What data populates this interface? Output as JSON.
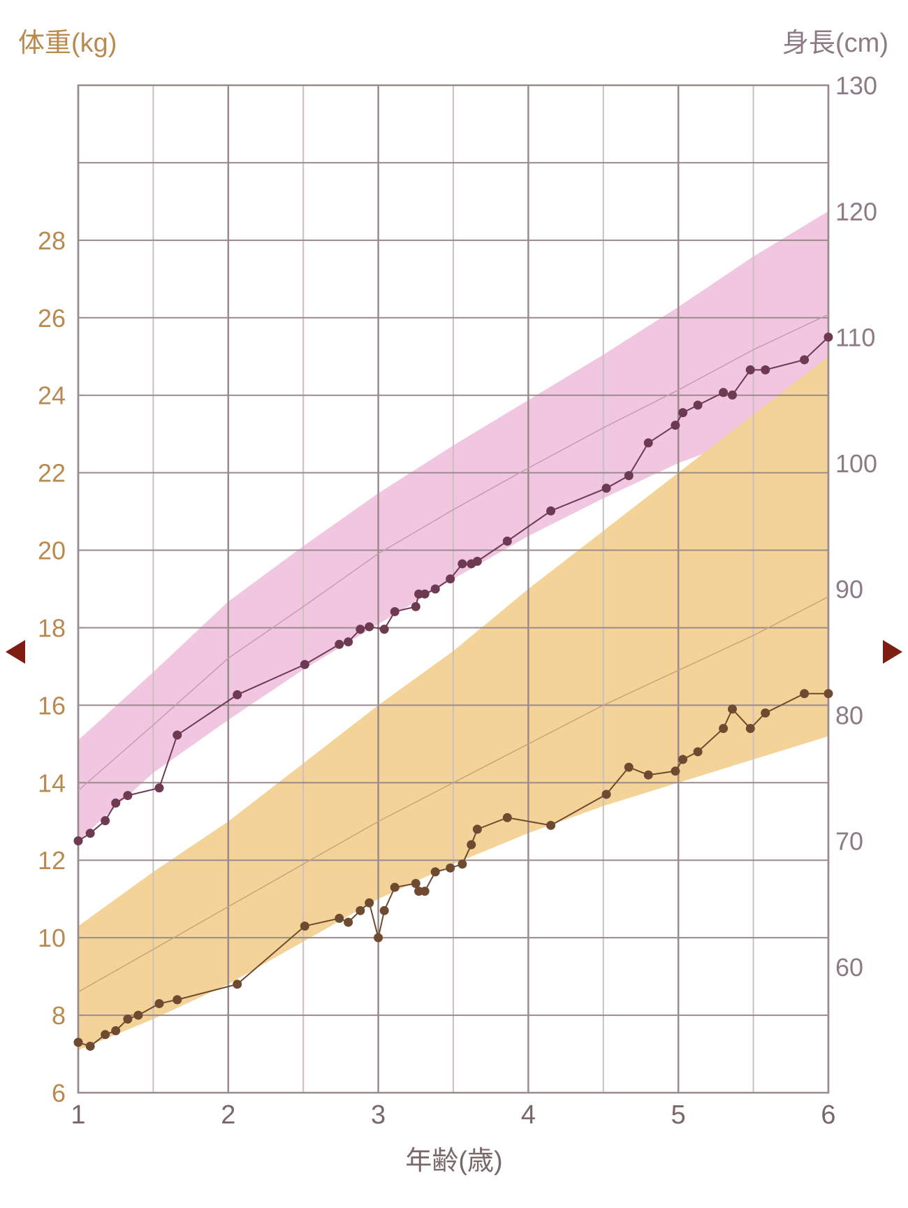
{
  "header": {
    "weight_axis_title": "体重(kg)",
    "height_axis_title": "身長(cm)"
  },
  "footer": {
    "age_axis_title": "年齢(歳)"
  },
  "nav": {
    "prev_icon": "triangle-left-icon",
    "next_icon": "triangle-right-icon",
    "arrow_color": "#7f1d13"
  },
  "chart_data": {
    "type": "line",
    "xlabel": "年齢(歳)",
    "xlim": [
      1,
      6
    ],
    "x_ticks": [
      1,
      2,
      3,
      4,
      5,
      6
    ],
    "y_left": {
      "label": "体重(kg)",
      "lim": [
        6,
        32
      ],
      "ticks": [
        6,
        8,
        10,
        12,
        14,
        16,
        18,
        20,
        22,
        24,
        26,
        28
      ]
    },
    "y_right": {
      "label": "身長(cm)",
      "lim": [
        50,
        130
      ],
      "ticks": [
        60,
        70,
        80,
        90,
        100,
        110,
        120,
        130
      ]
    },
    "grid": true,
    "colors": {
      "height_band": "#f0c6e0",
      "weight_band": "#f4d398",
      "height_line": "#6e3a52",
      "weight_line": "#6e4a30",
      "grid_major": "#9a8a8c",
      "grid_minor": "#cbbfc1",
      "left_axis_text": "#b88a50",
      "right_axis_text": "#8e7a85",
      "x_axis_text": "#7a6868"
    },
    "height_reference": {
      "axis": "right",
      "x": [
        1,
        1.5,
        2,
        2.5,
        3,
        3.5,
        4,
        4.5,
        5,
        5.5,
        6
      ],
      "lower": [
        70,
        75.4,
        79.6,
        83.6,
        87.2,
        90.8,
        94.2,
        97.2,
        100.0,
        102.2,
        104
      ],
      "median": [
        74,
        79.2,
        84.5,
        88.6,
        92.8,
        96.3,
        99.6,
        102.8,
        105.8,
        109,
        111.8
      ],
      "upper": [
        78,
        83.4,
        89.0,
        93.4,
        97.6,
        101.4,
        105,
        108.6,
        112.4,
        116.4,
        120
      ]
    },
    "weight_reference": {
      "axis": "left",
      "x": [
        1,
        1.5,
        2,
        2.5,
        3,
        3.5,
        4,
        4.5,
        5,
        5.5,
        6
      ],
      "lower": [
        7.1,
        7.9,
        8.8,
        9.9,
        11.0,
        11.9,
        12.7,
        13.4,
        14.0,
        14.6,
        15.2
      ],
      "median": [
        8.6,
        9.7,
        10.8,
        11.9,
        13.0,
        14.0,
        15.0,
        16.0,
        16.9,
        17.8,
        18.8
      ],
      "upper": [
        10.3,
        11.7,
        13.0,
        14.5,
        16.0,
        17.4,
        19.0,
        20.5,
        22.0,
        23.5,
        25.0
      ]
    },
    "series": [
      {
        "name": "",
        "axis": "right",
        "x": [
          1.0,
          1.08,
          1.18,
          1.25,
          1.33,
          1.54,
          1.66,
          2.06,
          2.51,
          2.74,
          2.8,
          2.88,
          2.94,
          3.04,
          3.11,
          3.25,
          3.27,
          3.31,
          3.38,
          3.48,
          3.56,
          3.62,
          3.66,
          3.86,
          4.15,
          4.52,
          4.67,
          4.8,
          4.98,
          5.03,
          5.13,
          5.3,
          5.36,
          5.48,
          5.58,
          5.84,
          6.0
        ],
        "values": [
          70,
          70.6,
          71.6,
          73.0,
          73.6,
          74.2,
          78.4,
          81.6,
          84.0,
          85.6,
          85.8,
          86.8,
          87.0,
          86.8,
          88.2,
          88.6,
          89.6,
          89.6,
          90.0,
          90.8,
          92.0,
          92.0,
          92.2,
          93.8,
          96.2,
          98.0,
          99.0,
          101.6,
          103.0,
          104.0,
          104.6,
          105.6,
          105.4,
          107.4,
          107.4,
          108.2,
          110.0
        ]
      },
      {
        "name": "",
        "axis": "left",
        "x": [
          1.0,
          1.08,
          1.18,
          1.25,
          1.33,
          1.4,
          1.54,
          1.66,
          2.06,
          2.51,
          2.74,
          2.8,
          2.88,
          2.94,
          3.0,
          3.04,
          3.11,
          3.25,
          3.27,
          3.31,
          3.38,
          3.48,
          3.56,
          3.62,
          3.66,
          3.86,
          4.15,
          4.52,
          4.67,
          4.8,
          4.98,
          5.03,
          5.13,
          5.3,
          5.36,
          5.48,
          5.58,
          5.84,
          6.0
        ],
        "values": [
          7.3,
          7.2,
          7.5,
          7.6,
          7.9,
          8.0,
          8.3,
          8.4,
          8.8,
          10.3,
          10.5,
          10.4,
          10.7,
          10.9,
          10.0,
          10.7,
          11.3,
          11.4,
          11.2,
          11.2,
          11.7,
          11.8,
          11.9,
          12.4,
          12.8,
          13.1,
          12.9,
          13.7,
          14.4,
          14.2,
          14.3,
          14.6,
          14.8,
          15.4,
          15.9,
          15.4,
          15.8,
          16.3,
          16.3
        ]
      }
    ]
  }
}
